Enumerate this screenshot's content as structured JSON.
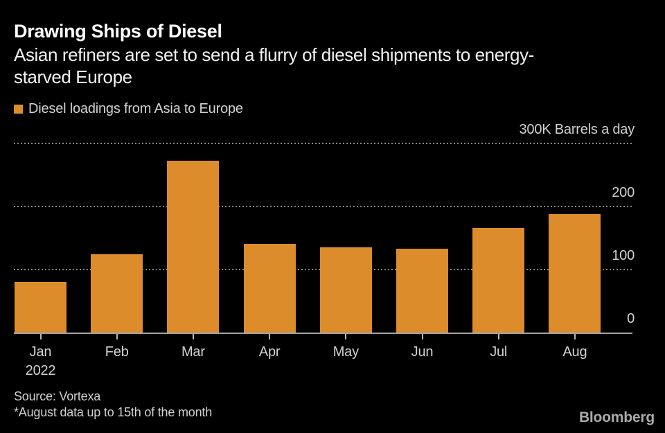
{
  "colors": {
    "background": "#000000",
    "bar": "#DD8C2C",
    "gridline": "#878787",
    "axis_line": "#A3A3A3",
    "title_text": "#FFFFFF",
    "muted_text": "#D2D2D2",
    "logo_text": "#ABABAB"
  },
  "header": {
    "title": "Drawing Ships of Diesel",
    "subtitle_lines": [
      "Asian refiners are set to send a flurry of diesel shipments to energy-",
      "starved Europe"
    ],
    "legend_label": "Diesel loadings from Asia to Europe"
  },
  "chart_data": {
    "type": "bar",
    "title": "Drawing Ships of Diesel",
    "subtitle": "Asian refiners are set to send a flurry of diesel shipments to energy-starved Europe",
    "legend": [
      "Diesel loadings from Asia to Europe"
    ],
    "legend_position": "top-left",
    "categories": [
      "Jan",
      "Feb",
      "Mar",
      "Apr",
      "May",
      "Jun",
      "Jul",
      "Aug"
    ],
    "x_axis_year_label": "2022",
    "values": [
      80,
      124,
      272,
      141,
      135,
      133,
      166,
      188
    ],
    "unit": "K barrels a day",
    "xlabel": "",
    "ylabel": "",
    "ylim": [
      0,
      300
    ],
    "gridline_values": [
      300,
      200,
      100
    ],
    "grid_style": "horizontal-dotted",
    "y_ticks": [
      {
        "value": 300,
        "label": "300K Barrels a day"
      },
      {
        "value": 200,
        "label": "200"
      },
      {
        "value": 100,
        "label": "100"
      },
      {
        "value": 0,
        "label": "0"
      }
    ],
    "bar_color": "#DD8C2C",
    "background_color": "#000000"
  },
  "footer": {
    "source": "Source: Vortexa",
    "note": "*August data up to 15th of the month",
    "brand": "Bloomberg"
  }
}
